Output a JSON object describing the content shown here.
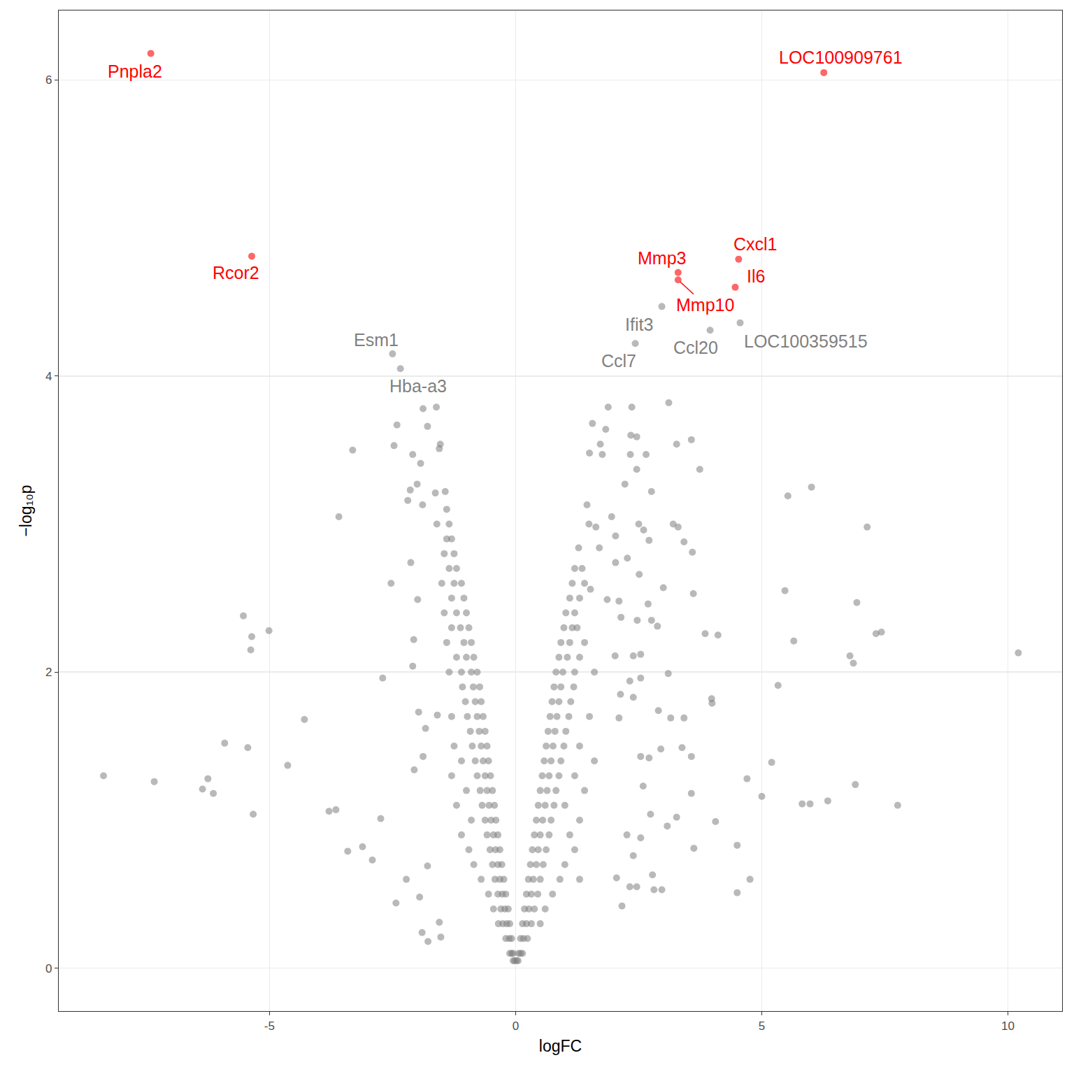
{
  "chart_data": {
    "type": "scatter",
    "x_label": "logFC",
    "y_label": "−log₁₀p",
    "xlim": [
      -9.28,
      11.1
    ],
    "ylim": [
      -0.29,
      6.47
    ],
    "xticks": [
      -5,
      0,
      5,
      10
    ],
    "yticks": [
      0,
      2,
      4,
      6
    ],
    "grid": true,
    "marker": "circle",
    "series": [
      {
        "color": "#808080",
        "x": [
          -2.5,
          -2.34,
          2.97,
          3.95,
          4.56,
          2.43,
          -8.37,
          -7.34,
          -6.25,
          -6.36,
          -6.14,
          -5.91,
          -5.44,
          -5.33,
          -5.53,
          -5.36,
          -5.38,
          -5.01,
          -4.63,
          -4.29,
          -3.59,
          -3.79,
          -3.65,
          -3.41,
          -3.11,
          -2.91,
          -2.74,
          -2.7,
          -3.31,
          -2.53,
          -2.47,
          -2.41,
          -2.43,
          -2.22,
          -1.95,
          -1.9,
          -2.09,
          -1.88,
          -1.61,
          -1.79,
          -1.53,
          -1.55,
          -1.93,
          -2.0,
          -2.14,
          -2.19,
          -1.89,
          -1.63,
          -1.43,
          -2.13,
          -1.99,
          -2.07,
          -2.09,
          -1.97,
          -1.88,
          -2.06,
          -1.79,
          -1.55,
          -1.52,
          -1.78,
          -1.83,
          -1.59,
          10.21,
          7.76,
          7.14,
          7.43,
          7.32,
          6.93,
          6.79,
          6.86,
          6.9,
          6.34,
          5.98,
          5.82,
          6.01,
          5.53,
          5.47,
          5.65,
          5.33,
          5.2,
          5.0,
          4.7,
          4.76,
          4.5,
          4.5,
          4.11,
          3.85,
          3.98,
          3.99,
          4.06,
          3.74,
          3.57,
          3.27,
          3.61,
          3.59,
          3.42,
          3.3,
          3.2,
          3.11,
          3.15,
          2.9,
          3.1,
          3.0,
          2.88,
          2.76,
          2.76,
          2.65,
          2.46,
          2.33,
          2.36,
          2.34,
          1.88,
          1.83,
          1.56,
          1.72,
          1.5,
          1.76,
          2.46,
          2.22,
          1.45,
          1.95,
          1.49,
          2.5,
          2.6,
          2.71,
          1.63,
          2.03,
          1.28,
          1.7,
          2.03,
          2.27,
          2.51,
          1.52,
          2.69,
          2.1,
          1.86,
          2.47,
          2.14,
          2.02,
          2.39,
          2.54,
          2.54,
          2.32,
          2.13,
          2.39,
          2.1,
          2.54,
          2.71,
          2.95,
          3.42,
          3.38,
          3.57,
          3.57,
          2.59,
          2.74,
          3.27,
          3.08,
          3.62,
          2.54,
          2.26,
          2.78,
          2.97,
          2.81,
          2.46,
          2.32,
          2.16,
          2.39,
          2.05,
          -0.02,
          -0.05,
          -0.05,
          -0.08,
          -0.12,
          -0.08,
          -0.13,
          -0.2,
          -0.12,
          -0.18,
          -0.26,
          -0.35,
          -0.15,
          -0.22,
          -0.3,
          -0.45,
          -0.2,
          -0.27,
          -0.36,
          -0.55,
          -0.24,
          -0.32,
          -0.42,
          -0.7,
          -0.28,
          -0.36,
          -0.47,
          -0.85,
          -0.32,
          -0.41,
          -0.52,
          -0.95,
          -0.36,
          -0.45,
          -0.58,
          -1.1,
          -0.4,
          -0.5,
          -0.62,
          -0.9,
          -0.43,
          -0.54,
          -0.68,
          -1.2,
          -0.47,
          -0.58,
          -0.72,
          -1.0,
          -0.51,
          -0.62,
          -0.78,
          -1.3,
          -0.55,
          -0.66,
          -0.82,
          -1.1,
          -0.58,
          -0.7,
          -0.88,
          -1.25,
          -0.62,
          -0.74,
          -0.92,
          -0.66,
          -0.78,
          -0.98,
          -1.3,
          -0.7,
          -0.82,
          -1.02,
          -0.73,
          -0.86,
          -1.08,
          -0.78,
          -0.9,
          -1.1,
          -1.35,
          -0.85,
          -1.0,
          -1.2,
          -0.9,
          -1.05,
          -1.4,
          -0.95,
          -1.12,
          -1.3,
          -1.0,
          -1.2,
          -1.45,
          -1.05,
          -1.3,
          -1.1,
          -1.25,
          -1.5,
          -1.2,
          -1.35,
          -1.25,
          -1.45,
          -1.3,
          -1.4,
          -1.35,
          -1.6,
          -1.4,
          0.02,
          0.05,
          0.06,
          0.1,
          0.14,
          0.1,
          0.16,
          0.24,
          0.14,
          0.22,
          0.32,
          0.5,
          0.18,
          0.27,
          0.38,
          0.6,
          0.22,
          0.32,
          0.45,
          0.75,
          0.26,
          0.36,
          0.5,
          0.9,
          1.3,
          0.3,
          0.42,
          0.56,
          1.0,
          0.34,
          0.46,
          0.62,
          1.2,
          0.38,
          0.5,
          0.68,
          1.1,
          0.42,
          0.55,
          0.72,
          1.3,
          0.46,
          0.6,
          0.78,
          1.0,
          0.5,
          0.64,
          0.82,
          1.4,
          0.54,
          0.68,
          0.88,
          1.2,
          0.58,
          0.72,
          0.92,
          1.6,
          0.62,
          0.76,
          0.98,
          1.3,
          0.66,
          0.8,
          1.02,
          0.7,
          0.84,
          1.08,
          1.5,
          0.74,
          0.88,
          1.12,
          0.78,
          0.92,
          1.18,
          0.82,
          0.96,
          1.2,
          1.6,
          0.88,
          1.05,
          1.3,
          0.92,
          1.1,
          1.4,
          0.98,
          1.15,
          1.25,
          1.02,
          1.2,
          1.1,
          1.3,
          1.15,
          1.4,
          1.2,
          1.35
        ],
        "values": [
          4.15,
          4.05,
          4.47,
          4.31,
          4.36,
          4.22,
          1.3,
          1.26,
          1.28,
          1.21,
          1.18,
          1.52,
          1.49,
          1.04,
          2.38,
          2.24,
          2.15,
          2.28,
          1.37,
          1.68,
          3.05,
          1.06,
          1.07,
          0.79,
          0.82,
          0.73,
          1.01,
          1.96,
          3.5,
          2.6,
          3.53,
          3.67,
          0.44,
          0.6,
          0.48,
          0.24,
          3.47,
          3.78,
          3.79,
          3.66,
          3.54,
          3.51,
          3.41,
          3.27,
          3.23,
          3.16,
          3.13,
          3.21,
          3.22,
          2.74,
          2.49,
          2.22,
          2.04,
          1.73,
          1.43,
          1.34,
          0.69,
          0.31,
          0.21,
          0.18,
          1.62,
          1.71,
          2.13,
          1.1,
          2.98,
          2.27,
          2.26,
          2.47,
          2.11,
          2.06,
          1.24,
          1.13,
          1.11,
          1.11,
          3.25,
          3.19,
          2.55,
          2.21,
          1.91,
          1.39,
          1.16,
          1.28,
          0.6,
          0.83,
          0.51,
          2.25,
          2.26,
          1.82,
          1.79,
          0.99,
          3.37,
          3.57,
          3.54,
          2.53,
          2.81,
          2.88,
          2.98,
          3.0,
          3.82,
          1.69,
          1.74,
          1.99,
          2.57,
          2.31,
          2.35,
          3.22,
          3.47,
          3.37,
          3.47,
          3.79,
          3.6,
          3.79,
          3.64,
          3.68,
          3.54,
          3.48,
          3.47,
          3.59,
          3.27,
          3.13,
          3.05,
          3.0,
          3.0,
          2.96,
          2.89,
          2.98,
          2.92,
          2.84,
          2.84,
          2.74,
          2.77,
          2.66,
          2.56,
          2.46,
          2.48,
          2.49,
          2.35,
          2.37,
          2.11,
          2.11,
          2.12,
          1.96,
          1.94,
          1.85,
          1.83,
          1.69,
          1.43,
          1.42,
          1.48,
          1.69,
          1.49,
          1.43,
          1.18,
          1.23,
          1.04,
          1.02,
          0.96,
          0.81,
          0.88,
          0.9,
          0.63,
          0.53,
          0.53,
          0.55,
          0.55,
          0.42,
          0.76,
          0.61,
          0.05,
          0.05,
          0.1,
          0.1,
          0.1,
          0.2,
          0.2,
          0.2,
          0.3,
          0.3,
          0.3,
          0.3,
          0.4,
          0.4,
          0.4,
          0.4,
          0.5,
          0.5,
          0.5,
          0.5,
          0.6,
          0.6,
          0.6,
          0.6,
          0.7,
          0.7,
          0.7,
          0.7,
          0.8,
          0.8,
          0.8,
          0.8,
          0.9,
          0.9,
          0.9,
          0.9,
          1.0,
          1.0,
          1.0,
          1.0,
          1.1,
          1.1,
          1.1,
          1.1,
          1.2,
          1.2,
          1.2,
          1.2,
          1.3,
          1.3,
          1.3,
          1.3,
          1.4,
          1.4,
          1.4,
          1.4,
          1.5,
          1.5,
          1.5,
          1.5,
          1.6,
          1.6,
          1.6,
          1.7,
          1.7,
          1.7,
          1.7,
          1.8,
          1.8,
          1.8,
          1.9,
          1.9,
          1.9,
          2.0,
          2.0,
          2.0,
          2.0,
          2.1,
          2.1,
          2.1,
          2.2,
          2.2,
          2.2,
          2.3,
          2.3,
          2.3,
          2.4,
          2.4,
          2.4,
          2.5,
          2.5,
          2.6,
          2.6,
          2.6,
          2.7,
          2.7,
          2.8,
          2.8,
          2.9,
          2.9,
          3.0,
          3.0,
          3.1,
          0.05,
          0.05,
          0.1,
          0.1,
          0.1,
          0.2,
          0.2,
          0.2,
          0.3,
          0.3,
          0.3,
          0.3,
          0.4,
          0.4,
          0.4,
          0.4,
          0.5,
          0.5,
          0.5,
          0.5,
          0.6,
          0.6,
          0.6,
          0.6,
          0.6,
          0.7,
          0.7,
          0.7,
          0.7,
          0.8,
          0.8,
          0.8,
          0.8,
          0.9,
          0.9,
          0.9,
          0.9,
          1.0,
          1.0,
          1.0,
          1.0,
          1.1,
          1.1,
          1.1,
          1.1,
          1.2,
          1.2,
          1.2,
          1.2,
          1.3,
          1.3,
          1.3,
          1.3,
          1.4,
          1.4,
          1.4,
          1.4,
          1.5,
          1.5,
          1.5,
          1.5,
          1.6,
          1.6,
          1.6,
          1.7,
          1.7,
          1.7,
          1.7,
          1.8,
          1.8,
          1.8,
          1.9,
          1.9,
          1.9,
          2.0,
          2.0,
          2.0,
          2.0,
          2.1,
          2.1,
          2.1,
          2.2,
          2.2,
          2.2,
          2.3,
          2.3,
          2.3,
          2.4,
          2.4,
          2.5,
          2.5,
          2.6,
          2.6,
          2.7,
          2.7
        ]
      },
      {
        "color": "#ff0000",
        "x": [
          -7.41,
          6.26,
          -5.36,
          4.53,
          3.3,
          3.3,
          4.46
        ],
        "values": [
          6.18,
          6.05,
          4.81,
          4.79,
          4.7,
          4.65,
          4.6
        ]
      }
    ],
    "annotations": [
      {
        "text": "Pnpla2",
        "x": -7.41,
        "y": 6.18,
        "color": "#ff0000"
      },
      {
        "text": "LOC100909761",
        "x": 6.26,
        "y": 6.05,
        "color": "#ff0000"
      },
      {
        "text": "Rcor2",
        "x": -5.36,
        "y": 4.81,
        "color": "#ff0000"
      },
      {
        "text": "Cxcl1",
        "x": 4.53,
        "y": 4.79,
        "color": "#ff0000"
      },
      {
        "text": "Mmp3",
        "x": 3.3,
        "y": 4.7,
        "color": "#ff0000"
      },
      {
        "text": "Mmp10",
        "x": 3.3,
        "y": 4.65,
        "color": "#ff0000"
      },
      {
        "text": "Il6",
        "x": 4.46,
        "y": 4.6,
        "color": "#ff0000"
      },
      {
        "text": "Esm1",
        "x": -2.5,
        "y": 4.15,
        "color": "#808080"
      },
      {
        "text": "Hba-a3",
        "x": -2.34,
        "y": 4.05,
        "color": "#808080"
      },
      {
        "text": "Ifit3",
        "x": 2.97,
        "y": 4.47,
        "color": "#808080"
      },
      {
        "text": "Ccl20",
        "x": 3.95,
        "y": 4.31,
        "color": "#808080"
      },
      {
        "text": "LOC100359515",
        "x": 4.56,
        "y": 4.36,
        "color": "#808080"
      },
      {
        "text": "Ccl7",
        "x": 2.43,
        "y": 4.22,
        "color": "#808080"
      }
    ]
  }
}
